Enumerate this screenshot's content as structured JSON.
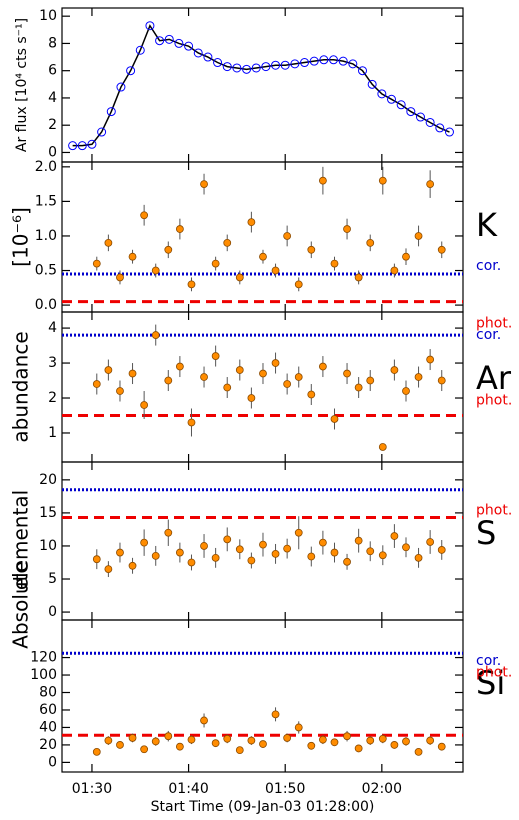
{
  "chart_data": [
    {
      "type": "line",
      "ylabel": "Ar flux [10⁴ cts s⁻¹]",
      "color": "#0000ff",
      "line_color": "#000000",
      "xlim": [
        -1.1,
        40.4
      ],
      "ylim": [
        -0.7,
        10.6
      ],
      "yticks": [
        0,
        2,
        4,
        6,
        8,
        10
      ],
      "x": [
        0,
        1,
        2,
        3,
        4,
        5,
        6,
        7,
        8,
        9,
        10,
        11,
        12,
        13,
        14,
        15,
        16,
        17,
        18,
        19,
        20,
        21,
        22,
        23,
        24,
        25,
        26,
        27,
        28,
        29,
        30,
        31,
        32,
        33,
        34,
        35,
        36,
        37,
        38,
        39
      ],
      "values": [
        0.5,
        0.5,
        0.6,
        1.5,
        3,
        4.8,
        6,
        7.5,
        9.3,
        8.2,
        8.3,
        8,
        7.8,
        7.3,
        7,
        6.6,
        6.3,
        6.2,
        6.1,
        6.2,
        6.3,
        6.4,
        6.4,
        6.5,
        6.6,
        6.7,
        6.8,
        6.8,
        6.7,
        6.5,
        6,
        5,
        4.3,
        3.9,
        3.5,
        3,
        2.6,
        2.2,
        1.8,
        1.5
      ]
    },
    {
      "type": "scatter",
      "ylabel": "[10⁻⁶]",
      "element": "K",
      "color": "#ff8c00",
      "xlim": [
        -1.1,
        40.4
      ],
      "ylim": [
        -0.1,
        2.07
      ],
      "yticks": [
        {
          "value": 0,
          "label": "0.0"
        },
        {
          "value": 0.5,
          "label": "0.5"
        },
        {
          "value": 1,
          "label": "1.0"
        },
        {
          "value": 1.5,
          "label": "1.5"
        },
        {
          "value": 2,
          "label": "2.0"
        }
      ],
      "lines": [
        {
          "name": "cor.",
          "value": 0.45,
          "color": "#0000cc",
          "style": "dotted"
        },
        {
          "name": "phot.",
          "value": 0.05,
          "color": "#ee0000",
          "style": "dashed"
        }
      ],
      "x": [
        2.5,
        3.7,
        4.9,
        6.2,
        7.4,
        8.6,
        9.9,
        11.1,
        12.3,
        13.6,
        14.8,
        16,
        17.3,
        18.5,
        19.7,
        21,
        22.2,
        23.4,
        24.7,
        25.9,
        27.1,
        28.4,
        29.6,
        30.8,
        32.1,
        33.3,
        34.5,
        35.8,
        37,
        38.2
      ],
      "values": [
        0.6,
        0.9,
        0.4,
        0.7,
        1.3,
        0.5,
        0.8,
        1.1,
        0.3,
        1.75,
        0.6,
        0.9,
        0.4,
        1.2,
        0.7,
        0.5,
        1.0,
        0.3,
        0.8,
        1.8,
        0.6,
        1.1,
        0.4,
        0.9,
        1.8,
        0.5,
        0.7,
        1.0,
        1.75,
        0.8
      ],
      "errors": [
        0.1,
        0.12,
        0.1,
        0.1,
        0.15,
        0.1,
        0.12,
        0.15,
        0.1,
        0.15,
        0.1,
        0.12,
        0.1,
        0.15,
        0.1,
        0.1,
        0.15,
        0.1,
        0.12,
        0.2,
        0.1,
        0.15,
        0.1,
        0.12,
        0.2,
        0.1,
        0.12,
        0.15,
        0.2,
        0.12
      ]
    },
    {
      "type": "scatter",
      "ylabel": "abundance",
      "element": "Ar",
      "color": "#ff8c00",
      "xlim": [
        -1.1,
        40.4
      ],
      "ylim": [
        0.17,
        4.46
      ],
      "yticks": [
        1,
        2,
        3,
        4
      ],
      "lines": [
        {
          "name": "cor.",
          "value": 3.8,
          "color": "#0000cc",
          "style": "dotted"
        },
        {
          "name": "phot.",
          "value": 1.5,
          "color": "#ee0000",
          "style": "dashed"
        }
      ],
      "x": [
        2.5,
        3.7,
        4.9,
        6.2,
        7.4,
        8.6,
        9.9,
        11.1,
        12.3,
        13.6,
        14.8,
        16,
        17.3,
        18.5,
        19.7,
        21,
        22.2,
        23.4,
        24.7,
        25.9,
        27.1,
        28.4,
        29.6,
        30.8,
        32.1,
        33.3,
        34.5,
        35.8,
        37,
        38.2
      ],
      "values": [
        2.4,
        2.8,
        2.2,
        2.7,
        1.8,
        3.8,
        2.5,
        2.9,
        1.3,
        2.6,
        3.2,
        2.3,
        2.8,
        2.0,
        2.7,
        3.0,
        2.4,
        2.6,
        2.1,
        2.9,
        1.4,
        2.7,
        2.3,
        2.5,
        0.6,
        2.8,
        2.2,
        2.6,
        3.1,
        2.5
      ],
      "errors": [
        0.3,
        0.3,
        0.3,
        0.3,
        0.4,
        0.3,
        0.3,
        0.3,
        0.4,
        0.3,
        0.3,
        0.3,
        0.3,
        0.3,
        0.3,
        0.3,
        0.3,
        0.3,
        0.3,
        0.3,
        0.3,
        0.3,
        0.3,
        0.3,
        0.1,
        0.3,
        0.3,
        0.3,
        0.3,
        0.3
      ]
    },
    {
      "type": "scatter",
      "ylabel": "elemental",
      "element": "S",
      "color": "#ff8c00",
      "xlim": [
        -1.1,
        40.4
      ],
      "ylim": [
        -1.2,
        22.7
      ],
      "yticks": [
        0,
        5,
        10,
        15,
        20
      ],
      "lines": [
        {
          "value": 18.5,
          "color": "#0000cc",
          "style": "dotted"
        },
        {
          "name": "phot.",
          "value": 14.3,
          "color": "#ee0000",
          "style": "dashed"
        }
      ],
      "x": [
        2.5,
        3.7,
        4.9,
        6.2,
        7.4,
        8.6,
        9.9,
        11.1,
        12.3,
        13.6,
        14.8,
        16,
        17.3,
        18.5,
        19.7,
        21,
        22.2,
        23.4,
        24.7,
        25.9,
        27.1,
        28.4,
        29.6,
        30.8,
        32.1,
        33.3,
        34.5,
        35.8,
        37,
        38.2
      ],
      "values": [
        8,
        6.5,
        9,
        7,
        10.5,
        8.5,
        12,
        9,
        7.5,
        10,
        8.2,
        11,
        9.5,
        7.8,
        10.2,
        8.8,
        9.6,
        12,
        8.4,
        10.5,
        9,
        7.6,
        10.8,
        9.2,
        8.6,
        11.5,
        9.8,
        8.2,
        10.6,
        9.4
      ],
      "errors": [
        1.5,
        1.2,
        1.5,
        1.2,
        2,
        1.5,
        2,
        1.5,
        1.2,
        1.8,
        1.5,
        1.8,
        1.5,
        1.2,
        1.8,
        1.5,
        1.5,
        2.5,
        1.5,
        1.8,
        1.5,
        1.2,
        1.8,
        1.5,
        1.5,
        1.8,
        1.5,
        1.5,
        1.8,
        1.5
      ]
    },
    {
      "type": "scatter",
      "ylabel": "Absolute",
      "element": "Si",
      "color": "#ff8c00",
      "xlabel": "Start Time (09-Jan-03 01:28:00)",
      "xlim": [
        -1.1,
        40.4
      ],
      "ylim": [
        -11,
        163
      ],
      "yticks": [
        0,
        20,
        40,
        60,
        80,
        100,
        120
      ],
      "xticks": [
        {
          "value": 2,
          "label": "01:30"
        },
        {
          "value": 12,
          "label": "01:40"
        },
        {
          "value": 22,
          "label": "01:50"
        },
        {
          "value": 32,
          "label": "02:00"
        }
      ],
      "lines": [
        {
          "name": "cor.",
          "value": 125,
          "color": "#0000cc",
          "style": "dotted"
        },
        {
          "name": "phot.",
          "value": 31,
          "color": "#ee0000",
          "style": "dashed"
        }
      ],
      "x": [
        2.5,
        3.7,
        4.9,
        6.2,
        7.4,
        8.6,
        9.9,
        11.1,
        12.3,
        13.6,
        14.8,
        16,
        17.3,
        18.5,
        19.7,
        21,
        22.2,
        23.4,
        24.7,
        25.9,
        27.1,
        28.4,
        29.6,
        30.8,
        32.1,
        33.3,
        34.5,
        35.8,
        37,
        38.2
      ],
      "values": [
        12,
        25,
        20,
        28,
        15,
        24,
        30,
        18,
        26,
        48,
        22,
        27,
        14,
        25,
        21,
        55,
        28,
        40,
        19,
        26,
        23,
        30,
        16,
        25,
        27,
        20,
        24,
        12,
        25,
        18
      ],
      "errors": [
        3,
        5,
        4,
        5,
        3,
        5,
        6,
        4,
        5,
        8,
        4,
        5,
        3,
        5,
        4,
        8,
        5,
        7,
        4,
        5,
        4,
        6,
        3,
        5,
        5,
        4,
        5,
        3,
        5,
        4
      ]
    }
  ]
}
